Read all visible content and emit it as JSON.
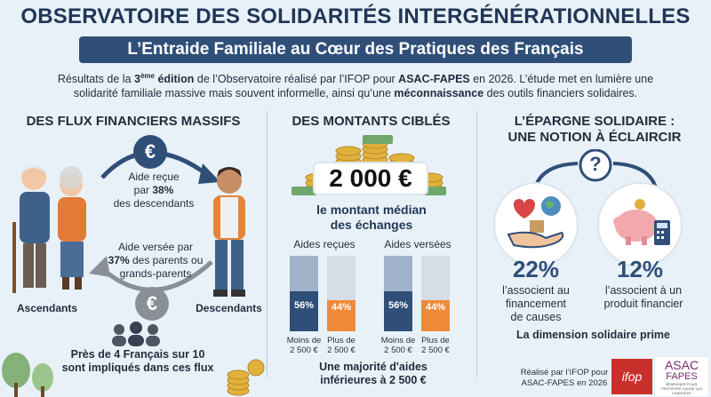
{
  "header": {
    "title": "OBSERVATOIRE DES SOLIDARITÉS INTERGÉNÉRATIONNELLES",
    "subtitle": "L’Entraide Familiale au Cœur des Pratiques des Français"
  },
  "intro": {
    "line1_a": "Résultats de la ",
    "line1_edition_num": "3",
    "line1_edition_sup": "ème",
    "line1_edition_word": " édition",
    "line1_b": " de l’Observatoire réalisé par l’IFOP pour ",
    "line1_org": "ASAC-FAPES",
    "line1_c": " en 2026. L’étude met en lumière une",
    "line2_a": "solidarité familiale massive mais souvent informelle, ainsi qu’une ",
    "line2_b": "méconnaissance",
    "line2_c": " des outils financiers solidaires."
  },
  "col1": {
    "title": "DES FLUX FINANCIERS MASSIFS",
    "coin_symbol": "€",
    "received_a": "Aide reçue",
    "received_b": "par ",
    "received_pct": "38%",
    "received_c": "des descendants",
    "given_a": "Aide versée par",
    "given_pct": "37%",
    "given_b": " des parents ou",
    "given_c": "grands-parents",
    "left_label": "Ascendants",
    "right_label": "Descendants",
    "footer_a": "Près de 4 Français sur 10",
    "footer_b": "sont impliqués dans ces flux"
  },
  "col2": {
    "title": "DES MONTANTS CIBLÉS",
    "amount": "2 000 €",
    "amount_caption_a": "le montant médian",
    "amount_caption_b": "des échanges",
    "group1_title": "Aides reçues",
    "group2_title": "Aides versées",
    "group1": {
      "under_pct": "56%",
      "over_pct": "44%",
      "under": 56,
      "over": 44
    },
    "group2": {
      "under_pct": "56%",
      "over_pct": "44%",
      "under": 56,
      "over": 44
    },
    "under_label_a": "Moins de",
    "under_label_b": "2 500 €",
    "over_label_a": "Plus de",
    "over_label_b": "2 500 €",
    "footer_a": "Une majorité d'aides",
    "footer_b": "inférieures à 2 500 €",
    "colors": {
      "under": "#2f4f78",
      "over": "#ef8a3a",
      "bg_under": "#9fb2c9",
      "bg_over": "#d5dde7"
    }
  },
  "col3": {
    "title_a": "L’ÉPARGNE SOLIDAIRE :",
    "title_b": "UNE NOTION À ÉCLAIRCIR",
    "question": "?",
    "stat1_pct": "22%",
    "stat1_a": "l’associent au",
    "stat1_b": "financement",
    "stat1_c": "de causes",
    "stat2_pct": "12%",
    "stat2_a": "l’associent à un",
    "stat2_b": "produit financier",
    "footer": "La dimension solidaire prime"
  },
  "credits": {
    "line1": "Réalisé par l’IFOP pour",
    "line2": "ASAC-FAPES en 2026",
    "ifop_logo": "ifop",
    "asac_logo_a": "ASAC",
    "asac_logo_b": "FAPES",
    "asac_tagline": "ÉPARGNER POUR PROTÉGER CAUSE QUI CHANGENT"
  }
}
